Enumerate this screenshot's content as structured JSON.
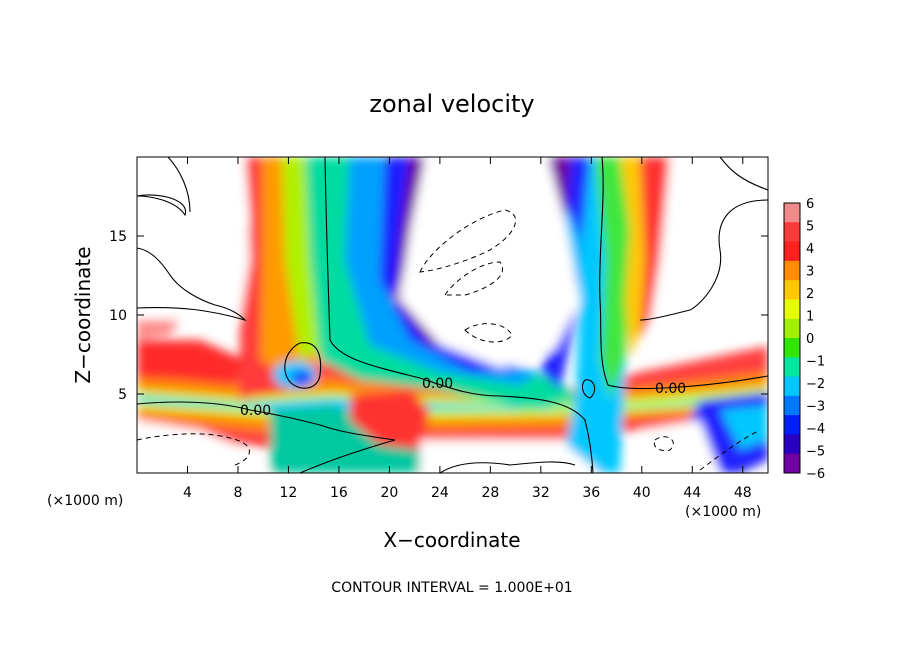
{
  "chart_data": {
    "type": "heatmap",
    "title": "zonal velocity",
    "xlabel": "X−coordinate",
    "ylabel": "Z−coordinate",
    "x_unit": "(×1000 m)",
    "y_unit": "(×1000 m)",
    "footer": "CONTOUR INTERVAL = 1.000E+01",
    "xlim": [
      0,
      50
    ],
    "ylim": [
      0,
      20
    ],
    "x_ticks": [
      4,
      8,
      12,
      16,
      20,
      24,
      28,
      32,
      36,
      40,
      44,
      48
    ],
    "y_ticks": [
      5,
      10,
      15
    ],
    "contour_label": "0.00",
    "colorbar": {
      "ticks": [
        "6",
        "5",
        "4",
        "3",
        "2",
        "1",
        "0",
        "−1",
        "−2",
        "−3",
        "−4",
        "−5",
        "−6"
      ],
      "colors": [
        "#f08a8a",
        "#ff3a3a",
        "#ff2020",
        "#ff8c00",
        "#ffc800",
        "#e6ff00",
        "#a0f000",
        "#32e600",
        "#00e6a0",
        "#00c8ff",
        "#0078ff",
        "#0020ff",
        "#2800c0",
        "#7000a0"
      ]
    }
  }
}
